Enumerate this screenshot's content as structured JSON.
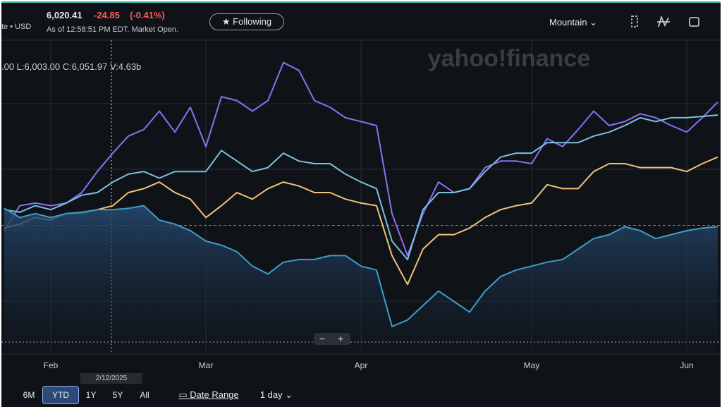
{
  "header": {
    "exchange": "te • USD",
    "price": "6,020.41",
    "change": "-24.85",
    "change_percent": "(-0.41%)",
    "as_of": "As of 12:58:51 PM EDT. Market Open.",
    "follow_button": "Following",
    "timezone": "Mountain"
  },
  "ohlc": ".00 L:6,003.00 C:6,051.97 V:4.63b",
  "watermark": "yahoo!finance",
  "crosshair_date": "2/12/2025",
  "zoom": [
    "−",
    "+"
  ],
  "ranges": [
    "6M",
    "YTD",
    "1Y",
    "5Y",
    "All"
  ],
  "selected_range": "YTD",
  "date_range": "Date Range",
  "interval": "1 day",
  "chart_data": {
    "type": "line",
    "categories": [
      null,
      null,
      null,
      "Feb",
      null,
      null,
      null,
      null,
      null,
      null,
      null,
      null,
      null,
      "Mar",
      null,
      null,
      null,
      null,
      null,
      null,
      null,
      null,
      null,
      "Apr",
      null,
      null,
      null,
      null,
      null,
      null,
      null,
      null,
      null,
      null,
      "May",
      null,
      null,
      null,
      null,
      null,
      null,
      null,
      null,
      null,
      "Jun",
      null,
      null
    ],
    "ylim": [
      -9.8,
      14.1
    ],
    "series": [
      {
        "color": "#8b6ff2",
        "values": [
          -0.4,
          1.5,
          1.7,
          1.5,
          1.7,
          2.5,
          4.1,
          5.5,
          6.8,
          7.3,
          8.7,
          7.1,
          9.0,
          6.0,
          9.8,
          9.5,
          8.7,
          9.5,
          12.4,
          11.8,
          9.5,
          9.0,
          8.2,
          7.9,
          7.6,
          0.9,
          -2.3,
          0.9,
          3.3,
          2.5,
          2.8,
          4.4,
          4.9,
          4.9,
          4.7,
          6.6,
          6.0,
          7.3,
          8.7,
          7.6,
          7.9,
          8.5,
          8.2,
          7.6,
          7.1,
          8.2,
          9.4
        ]
      },
      {
        "color": "#7cbfdf",
        "values": [
          1.2,
          1.0,
          1.5,
          1.2,
          1.7,
          2.3,
          2.5,
          3.3,
          3.9,
          4.1,
          3.6,
          4.1,
          4.1,
          4.1,
          5.7,
          4.9,
          4.1,
          4.4,
          5.5,
          4.9,
          4.7,
          4.7,
          3.9,
          3.3,
          2.8,
          -1.2,
          -2.6,
          1.2,
          2.5,
          2.5,
          2.8,
          4.1,
          5.2,
          5.5,
          5.5,
          6.3,
          6.3,
          6.3,
          6.8,
          7.1,
          7.6,
          8.2,
          7.9,
          8.2,
          8.2,
          8.3,
          8.4
        ]
      },
      {
        "color": "#f0c27a",
        "values": [
          -0.2,
          0.1,
          0.6,
          0.4,
          0.9,
          0.9,
          1.2,
          1.5,
          2.5,
          2.8,
          3.3,
          2.5,
          2.0,
          0.6,
          1.5,
          2.5,
          2.0,
          2.8,
          3.3,
          3.0,
          2.5,
          2.5,
          2.0,
          1.7,
          1.5,
          -2.3,
          -4.5,
          -1.8,
          -0.7,
          -0.7,
          -0.2,
          0.6,
          1.2,
          1.5,
          1.7,
          3.1,
          2.8,
          2.8,
          4.1,
          4.7,
          4.7,
          4.4,
          4.4,
          4.4,
          4.1,
          4.7,
          5.2
        ]
      },
      {
        "color": "#3f9cc8",
        "area": true,
        "values": [
          1.3,
          0.6,
          0.9,
          0.6,
          0.9,
          1.0,
          1.2,
          1.2,
          1.3,
          1.5,
          0.4,
          0.1,
          -0.4,
          -1.2,
          -1.5,
          -2.0,
          -3.1,
          -3.7,
          -2.8,
          -2.6,
          -2.6,
          -2.3,
          -2.3,
          -3.1,
          -3.4,
          -7.7,
          -7.2,
          -6.1,
          -5.0,
          -5.8,
          -6.6,
          -5.0,
          -3.9,
          -3.4,
          -3.1,
          -2.8,
          -2.6,
          -1.8,
          -1.0,
          -0.7,
          -0.1,
          -0.4,
          -1.0,
          -0.7,
          -0.4,
          -0.2,
          -0.1
        ]
      }
    ]
  }
}
